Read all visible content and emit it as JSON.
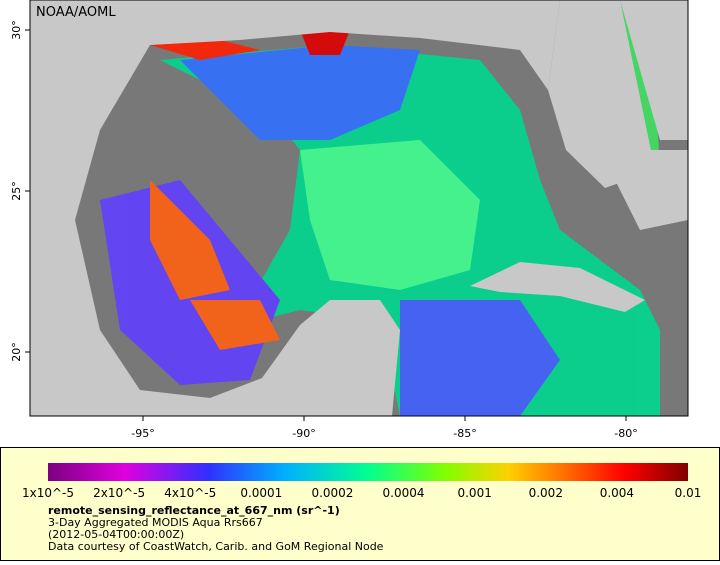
{
  "map": {
    "credit": "NOAA/AOML",
    "lon_ticks": [
      "-95°",
      "-90°",
      "-85°",
      "-80°"
    ],
    "lat_ticks": [
      "30°",
      "25°",
      "20°"
    ]
  },
  "legend": {
    "scale_labels": [
      "1x10^-5",
      "2x10^-5",
      "4x10^-5",
      "0.0001",
      "0.0002",
      "0.0004",
      "0.001",
      "0.002",
      "0.004",
      "0.01"
    ],
    "variable": "remote_sensing_reflectance_at_667_nm (sr^-1)",
    "lines": [
      "3-Day Aggregated MODIS Aqua Rrs667",
      "(2012-05-04T00:00:00Z)",
      "Data courtesy of CoastWatch, Carib. and GoM Regional Node"
    ]
  }
}
